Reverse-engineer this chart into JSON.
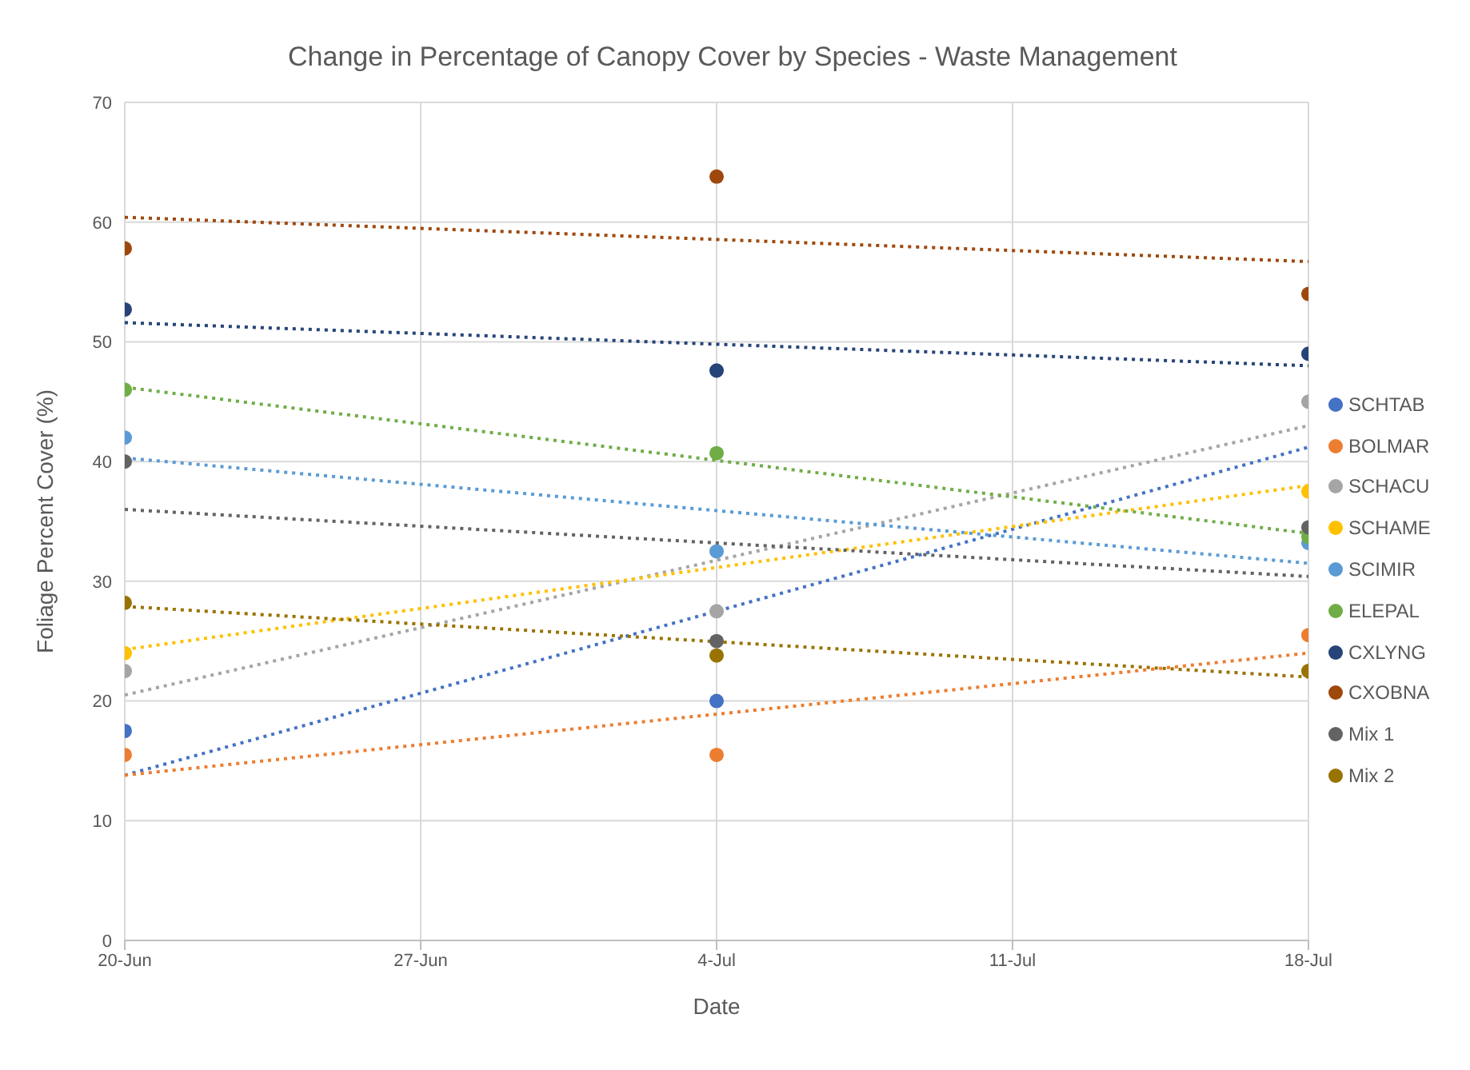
{
  "chart_data": {
    "type": "scatter",
    "title": "Change in Percentage of Canopy Cover by Species - Waste Management",
    "xlabel": "Date",
    "ylabel": "Foliage Percent Cover (%)",
    "x": [
      "--06-20",
      "--07-04",
      "--07-18"
    ],
    "xlim": [
      "--06-20",
      "--07-18"
    ],
    "xticks": [
      {
        "value": "--06-20",
        "label": "20-Jun"
      },
      {
        "value": "--06-27",
        "label": "27-Jun"
      },
      {
        "value": "--07-04",
        "label": "4-Jul"
      },
      {
        "value": "--07-11",
        "label": "11-Jul"
      },
      {
        "value": "--07-18",
        "label": "18-Jul"
      }
    ],
    "ylim": [
      0,
      70
    ],
    "yticks": [
      0,
      10,
      20,
      30,
      40,
      50,
      60,
      70
    ],
    "grid": true,
    "legend": "right",
    "marker": "circle",
    "series": [
      {
        "name": "SCHTAB",
        "color": "#4472c4",
        "values": [
          17.5,
          20,
          null
        ]
      },
      {
        "name": "BOLMAR",
        "color": "#ed7d31",
        "values": [
          15.5,
          15.5,
          25.5
        ]
      },
      {
        "name": "SCHACU",
        "color": "#a5a5a5",
        "values": [
          22.5,
          27.5,
          45
        ]
      },
      {
        "name": "SCHAME",
        "color": "#ffc000",
        "values": [
          24,
          null,
          37.5
        ]
      },
      {
        "name": "SCIMIR",
        "color": "#5b9bd5",
        "values": [
          42,
          32.5,
          33.2
        ]
      },
      {
        "name": "ELEPAL",
        "color": "#70ad47",
        "values": [
          46,
          40.7,
          33.7
        ]
      },
      {
        "name": "CXLYNG",
        "color": "#264478",
        "values": [
          52.7,
          47.6,
          49
        ]
      },
      {
        "name": "CXOBNA",
        "color": "#9e480e",
        "values": [
          57.8,
          63.8,
          54
        ]
      },
      {
        "name": "Mix 1",
        "color": "#636363",
        "values": [
          40,
          25,
          34.5
        ]
      },
      {
        "name": "Mix 2",
        "color": "#997300",
        "values": [
          28.2,
          23.8,
          22.5
        ]
      },
      {
        "type": "line",
        "marker": "none",
        "line_style": "dotted",
        "color": "#4472c4",
        "x": [
          "--06-20",
          "--07-18"
        ],
        "values": [
          13.8,
          41.2
        ]
      },
      {
        "type": "line",
        "marker": "none",
        "line_style": "dotted",
        "color": "#ed7d31",
        "x": [
          "--06-20",
          "--07-18"
        ],
        "values": [
          13.8,
          24
        ]
      },
      {
        "type": "line",
        "marker": "none",
        "line_style": "dotted",
        "color": "#a5a5a5",
        "x": [
          "--06-20",
          "--07-18"
        ],
        "values": [
          20.5,
          43
        ]
      },
      {
        "type": "line",
        "marker": "none",
        "line_style": "dotted",
        "color": "#ffc000",
        "x": [
          "--06-20",
          "--07-18"
        ],
        "values": [
          24.3,
          38
        ]
      },
      {
        "type": "line",
        "marker": "none",
        "line_style": "dotted",
        "color": "#5b9bd5",
        "x": [
          "--06-20",
          "--07-18"
        ],
        "values": [
          40.3,
          31.5
        ]
      },
      {
        "type": "line",
        "marker": "none",
        "line_style": "dotted",
        "color": "#70ad47",
        "x": [
          "--06-20",
          "--07-18"
        ],
        "values": [
          46.2,
          34
        ]
      },
      {
        "type": "line",
        "marker": "none",
        "line_style": "dotted",
        "color": "#264478",
        "x": [
          "--06-20",
          "--07-18"
        ],
        "values": [
          51.6,
          48
        ]
      },
      {
        "type": "line",
        "marker": "none",
        "line_style": "dotted",
        "color": "#9e480e",
        "x": [
          "--06-20",
          "--07-18"
        ],
        "values": [
          60.4,
          56.7
        ]
      },
      {
        "type": "line",
        "marker": "none",
        "line_style": "dotted",
        "color": "#636363",
        "x": [
          "--06-20",
          "--07-18"
        ],
        "values": [
          36,
          30.4
        ]
      },
      {
        "type": "line",
        "marker": "none",
        "line_style": "dotted",
        "color": "#997300",
        "x": [
          "--06-20",
          "--07-18"
        ],
        "values": [
          27.9,
          22
        ]
      }
    ]
  }
}
